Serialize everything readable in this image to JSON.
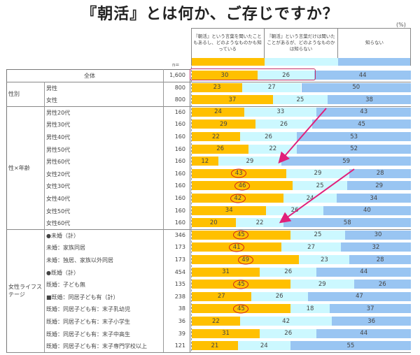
{
  "title": "『朝活』とは何か、ご存じですか？",
  "unit": "(%)",
  "n_label": "n=",
  "colors": {
    "know_content": "#ffc000",
    "heard_only": "#ccf8ff",
    "dont_know": "#99c5f2",
    "highlight_circle": "#d0211c",
    "highlight_box": "#c0306a",
    "arrow": "#e0207a"
  },
  "chart_data": {
    "type": "bar",
    "stacked": true,
    "orientation": "horizontal",
    "title": "『朝活』とは何か、ご存じですか？",
    "unit": "(%)",
    "xlim": [
      0,
      100
    ],
    "legend": [
      "『朝活』という言葉を聞いたこともあるし、どのようなものかも知っている",
      "『朝活』という言葉だけは聞いたことがあるが、どのようなものかは知らない",
      "知らない"
    ],
    "groups": [
      {
        "name": "",
        "rows": [
          {
            "label": "全体",
            "n": "1,600",
            "values": [
              30,
              26,
              44
            ],
            "circled": false,
            "boxed": true
          }
        ]
      },
      {
        "name": "性別",
        "rows": [
          {
            "label": "男性",
            "n": "800",
            "values": [
              23,
              27,
              50
            ],
            "circled": false
          },
          {
            "label": "女性",
            "n": "800",
            "values": [
              37,
              25,
              38
            ],
            "circled": false
          }
        ]
      },
      {
        "name": "性×年齢",
        "rows": [
          {
            "label": "男性20代",
            "n": "160",
            "values": [
              24,
              33,
              43
            ],
            "circled": false
          },
          {
            "label": "男性30代",
            "n": "160",
            "values": [
              29,
              26,
              45
            ],
            "circled": false
          },
          {
            "label": "男性40代",
            "n": "160",
            "values": [
              22,
              26,
              53
            ],
            "circled": false
          },
          {
            "label": "男性50代",
            "n": "160",
            "values": [
              26,
              22,
              52
            ],
            "circled": false
          },
          {
            "label": "男性60代",
            "n": "160",
            "values": [
              12,
              29,
              59
            ],
            "circled": false
          },
          {
            "label": "女性20代",
            "n": "160",
            "values": [
              43,
              29,
              28
            ],
            "circled": true
          },
          {
            "label": "女性30代",
            "n": "160",
            "values": [
              46,
              25,
              29
            ],
            "circled": true
          },
          {
            "label": "女性40代",
            "n": "160",
            "values": [
              42,
              24,
              34
            ],
            "circled": true
          },
          {
            "label": "女性50代",
            "n": "160",
            "values": [
              34,
              26,
              40
            ],
            "circled": false
          },
          {
            "label": "女性60代",
            "n": "160",
            "values": [
              20,
              22,
              58
            ],
            "circled": false
          }
        ]
      },
      {
        "name_lines": [
          "女性ライフス",
          "テージ"
        ],
        "rows": [
          {
            "label": "●未婚（計）",
            "n": "346",
            "values": [
              45,
              25,
              30
            ],
            "circled": true
          },
          {
            "label": "未婚：家族同居",
            "n": "173",
            "values": [
              41,
              27,
              32
            ],
            "circled": true
          },
          {
            "label": "未婚：独居、家族以外同居",
            "n": "173",
            "values": [
              49,
              23,
              28
            ],
            "circled": true
          },
          {
            "label": "●既婚（計）",
            "n": "454",
            "values": [
              31,
              26,
              44
            ],
            "circled": false
          },
          {
            "label": "既婚：子ども無",
            "n": "135",
            "values": [
              45,
              29,
              26
            ],
            "circled": true
          },
          {
            "label": "■既婚：同居子ども有（計）",
            "n": "238",
            "values": [
              27,
              26,
              47
            ],
            "circled": false
          },
          {
            "label": "既婚：同居子ども有：末子乳幼児",
            "n": "38",
            "values": [
              45,
              18,
              37
            ],
            "circled": true
          },
          {
            "label": "既婚：同居子ども有：末子小学生",
            "n": "36",
            "values": [
              22,
              42,
              36
            ],
            "circled": false
          },
          {
            "label": "既婚：同居子ども有：末子中高生",
            "n": "39",
            "values": [
              31,
              26,
              44
            ],
            "circled": false
          },
          {
            "label": "既婚：同居子ども有：末子専門学校以上",
            "n": "121",
            "values": [
              21,
              24,
              55
            ],
            "circled": false
          }
        ]
      }
    ]
  }
}
